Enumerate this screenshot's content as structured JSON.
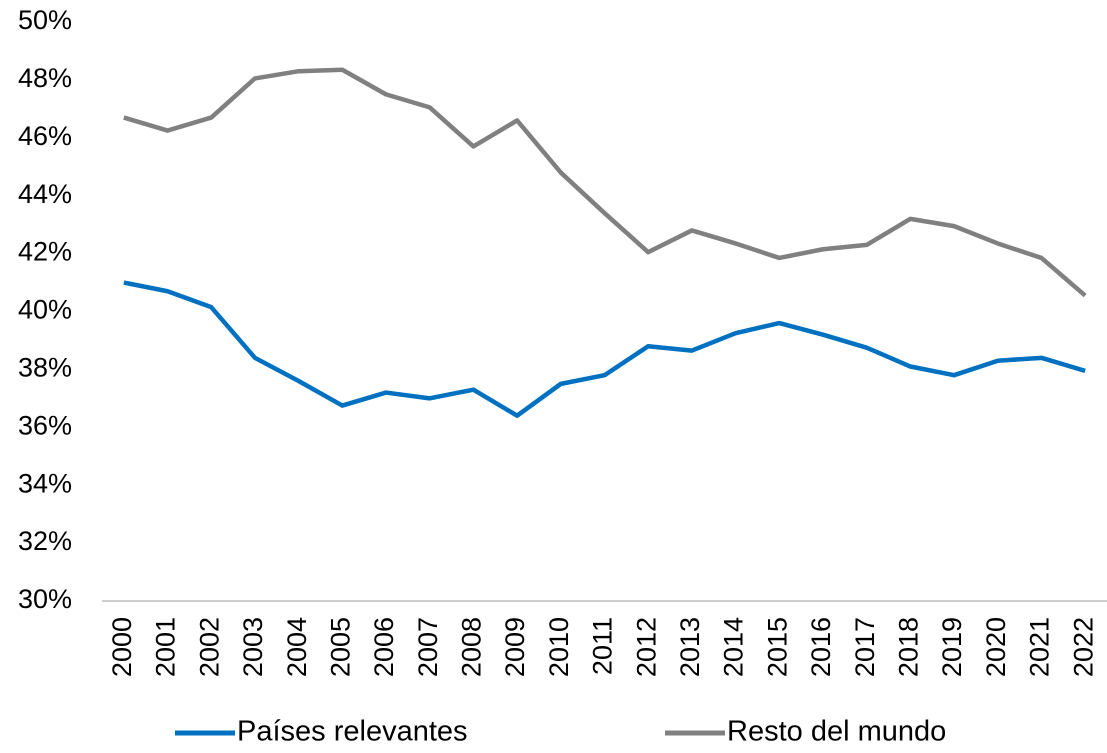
{
  "chart_data": {
    "type": "line",
    "categories": [
      "2000",
      "2001",
      "2002",
      "2003",
      "2004",
      "2005",
      "2006",
      "2007",
      "2008",
      "2009",
      "2010",
      "2011",
      "2012",
      "2013",
      "2014",
      "2015",
      "2016",
      "2017",
      "2018",
      "2019",
      "2020",
      "2021",
      "2022"
    ],
    "series": [
      {
        "name": "Países relevantes",
        "color": "#0070c0",
        "values": [
          41.0,
          40.7,
          40.15,
          38.4,
          37.6,
          36.75,
          37.2,
          37.0,
          37.3,
          36.4,
          37.5,
          37.8,
          38.8,
          38.65,
          39.25,
          39.6,
          39.2,
          38.75,
          38.1,
          37.8,
          38.3,
          38.4,
          37.95
        ]
      },
      {
        "name": "Resto del mundo",
        "color": "#808080",
        "values": [
          46.7,
          46.25,
          46.7,
          48.05,
          48.3,
          48.35,
          47.5,
          47.05,
          45.7,
          46.6,
          44.8,
          43.4,
          42.05,
          42.8,
          42.35,
          41.85,
          42.15,
          42.3,
          43.2,
          42.95,
          42.35,
          41.85,
          40.55
        ]
      }
    ],
    "ylim": [
      30,
      50
    ],
    "yticks": [
      {
        "value": 30,
        "label": "30%"
      },
      {
        "value": 32,
        "label": "32%"
      },
      {
        "value": 34,
        "label": "34%"
      },
      {
        "value": 36,
        "label": "36%"
      },
      {
        "value": 38,
        "label": "38%"
      },
      {
        "value": 40,
        "label": "40%"
      },
      {
        "value": 42,
        "label": "42%"
      },
      {
        "value": 44,
        "label": "44%"
      },
      {
        "value": 46,
        "label": "46%"
      },
      {
        "value": 48,
        "label": "48%"
      },
      {
        "value": 50,
        "label": "50%"
      }
    ],
    "grid": false,
    "legend": "bottom"
  }
}
